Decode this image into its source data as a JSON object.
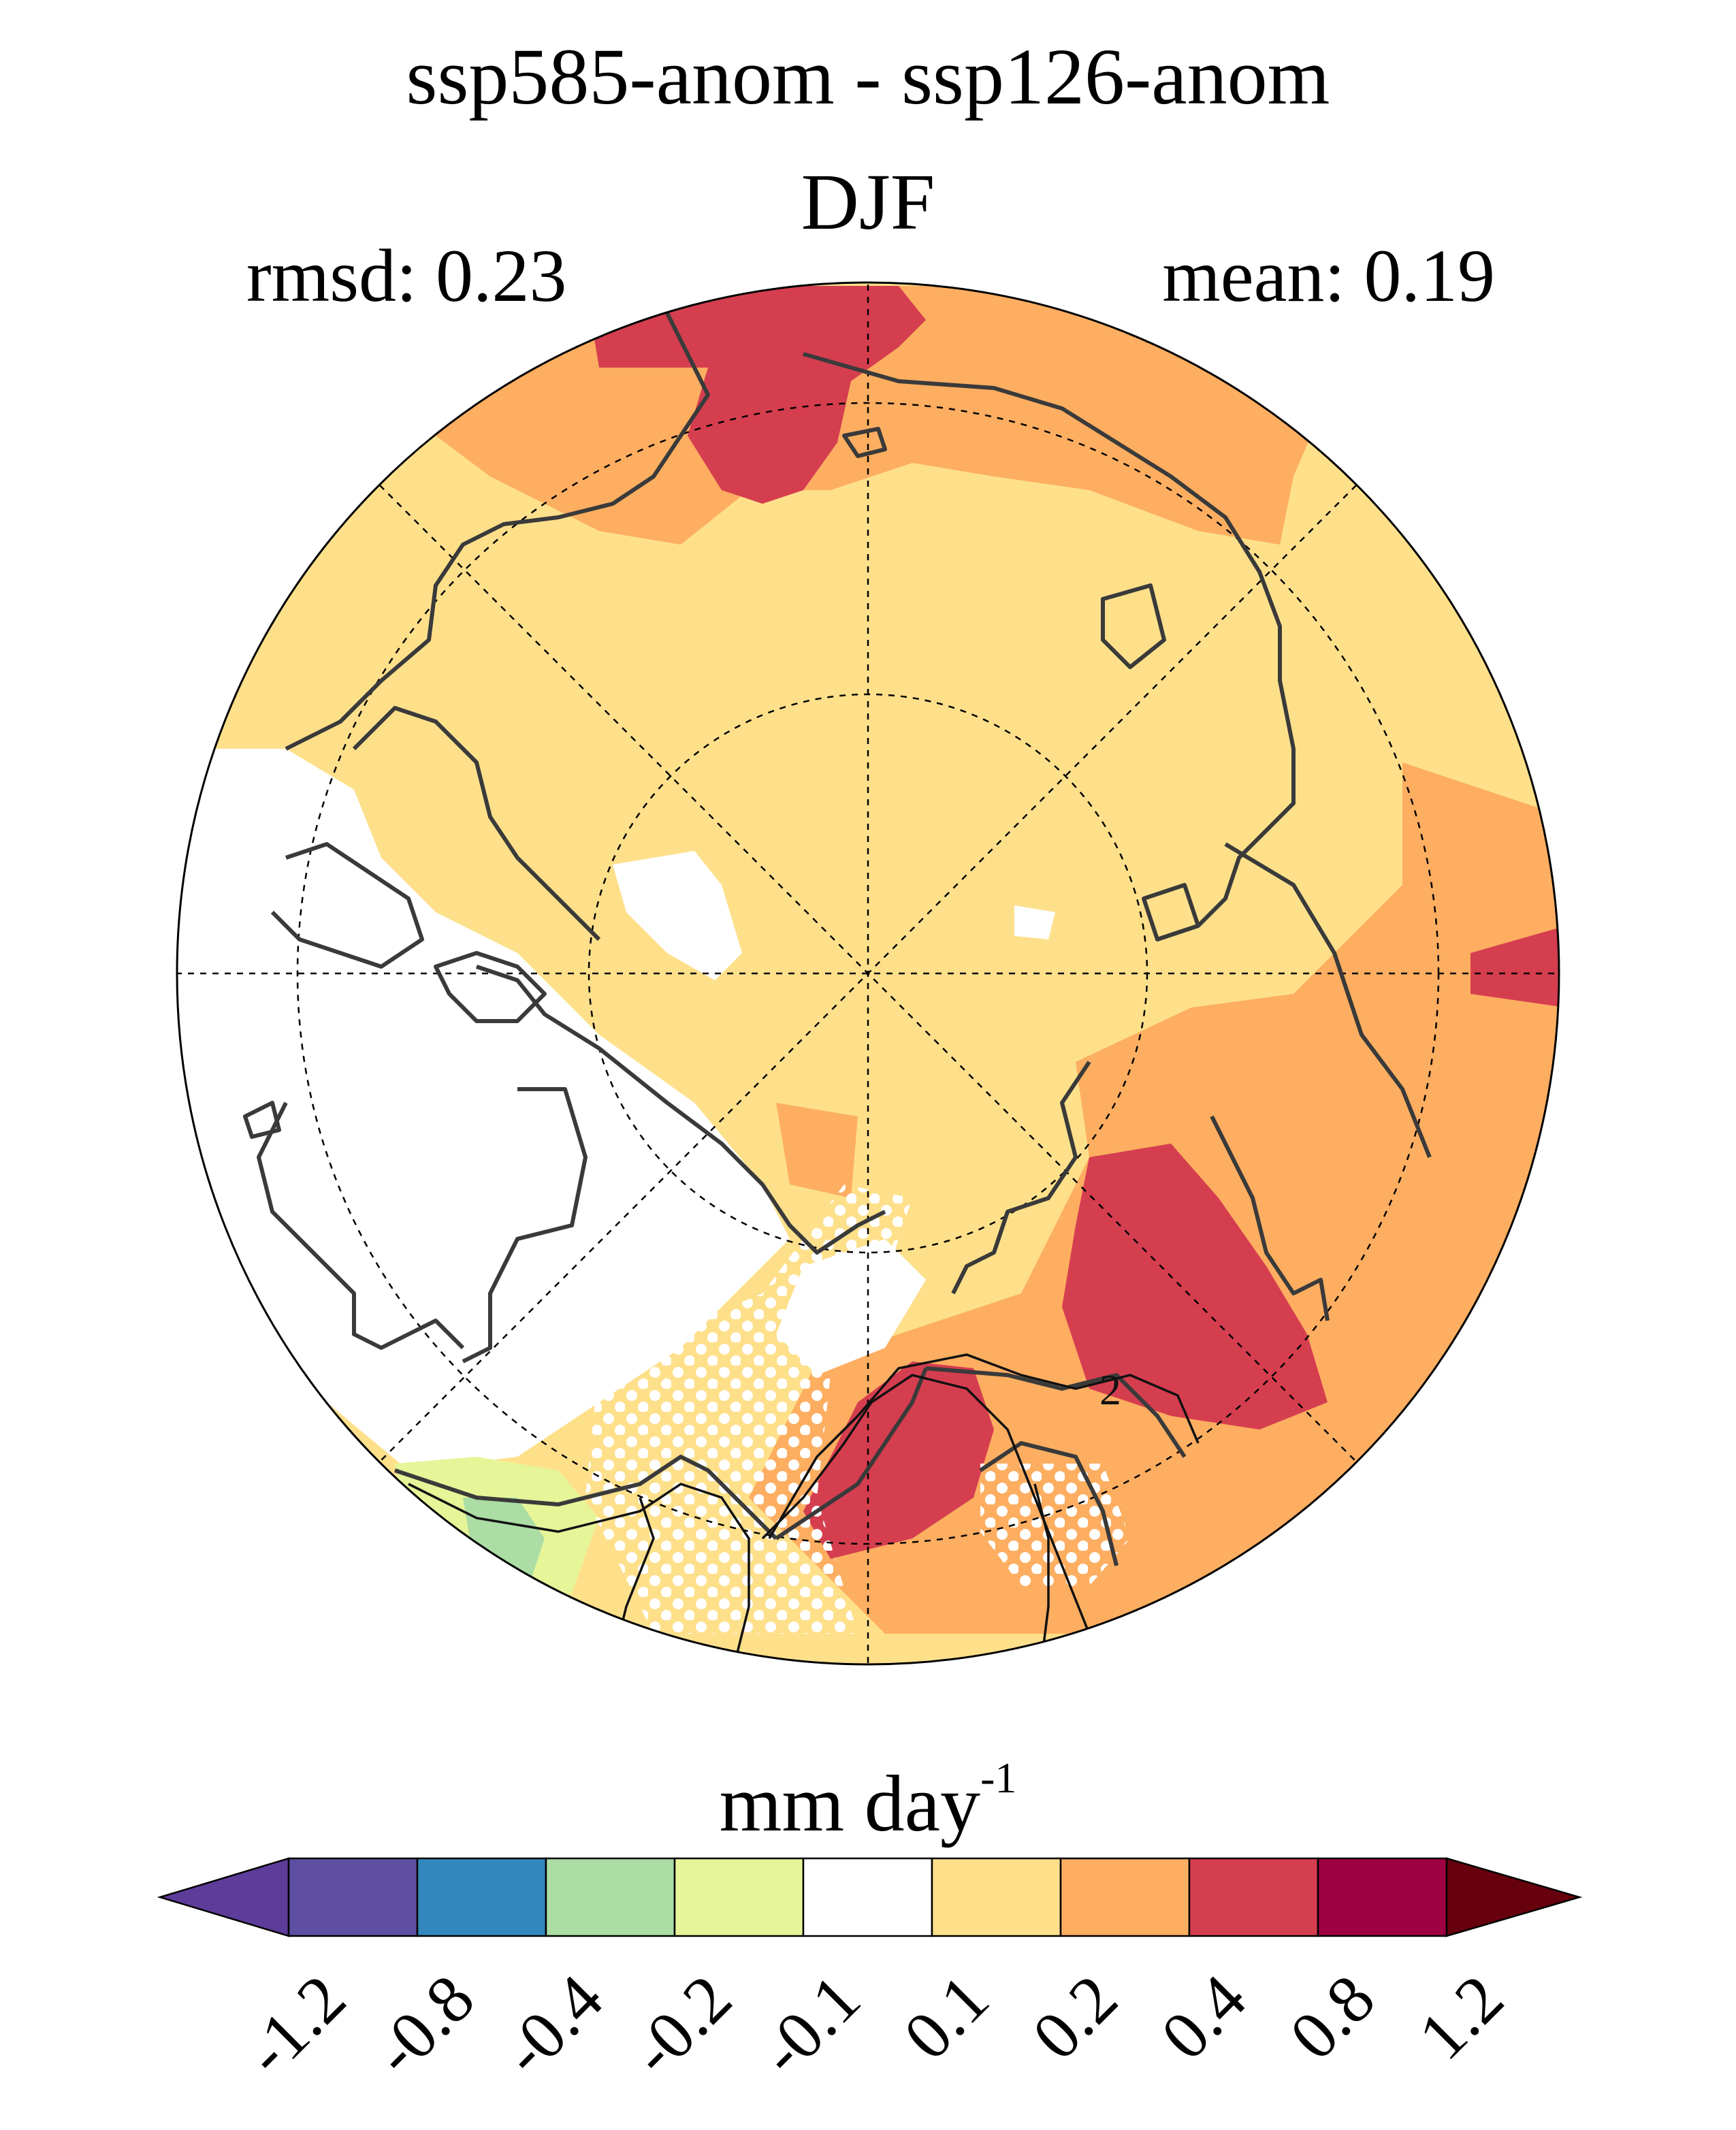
{
  "figure": {
    "title": "ssp585-anom - ssp126-anom",
    "season": "DJF",
    "rmsd_label": "rmsd: 0.23",
    "mean_label": "mean: 0.19"
  },
  "map": {
    "projection": "north polar stereographic",
    "contour_label": "2",
    "stippling": true
  },
  "colorbar": {
    "unit": "mm day",
    "unit_exponent": "-1",
    "boundaries": [
      "-1.2",
      "-0.8",
      "-0.4",
      "-0.2",
      "-0.1",
      "0.1",
      "0.2",
      "0.4",
      "0.8",
      "1.2"
    ],
    "colors": [
      "#5e3c99",
      "#5e4fa2",
      "#3288bd",
      "#abdda4",
      "#e6f598",
      "#ffffff",
      "#fee08b",
      "#fdae61",
      "#d53e4f",
      "#9e0142",
      "#67000d"
    ],
    "extend": "both"
  }
}
